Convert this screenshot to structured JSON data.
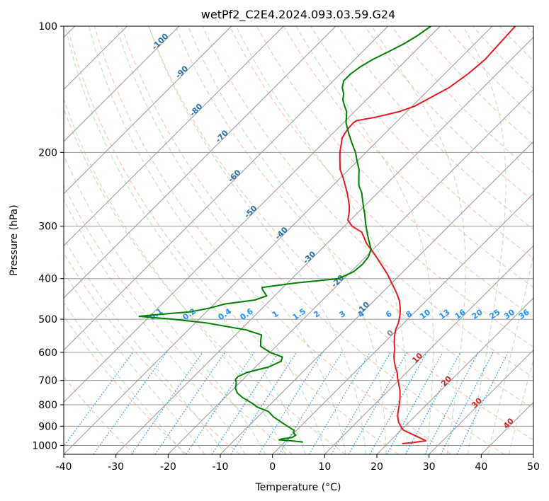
{
  "chart_data": {
    "type": "skew-t",
    "title": "wetPf2_C2E4.2024.093.03.59.G24",
    "xlabel": "Temperature (°C)",
    "ylabel": "Pressure (hPa)",
    "xlim": [
      -40,
      50
    ],
    "ylim": [
      1050,
      100
    ],
    "x_ticks": [
      -40,
      -30,
      -20,
      -10,
      0,
      10,
      20,
      30,
      40,
      50
    ],
    "y_ticks": [
      100,
      200,
      300,
      400,
      500,
      600,
      700,
      800,
      900,
      1000
    ],
    "grid": true,
    "colors": {
      "temperature": "#e41a1c",
      "dewpoint": "#008000",
      "isotherm": "#999999",
      "dry_adiabat": "#fc9272",
      "moist_adiabat": "#74c476",
      "mixing_ratio": "#1e90ff",
      "dry_adiabat_label": "#2c6fa8",
      "isotherm_label": "#d62728",
      "zero_label": "#888888"
    },
    "series": [
      {
        "name": "Temperature",
        "points": [
          [
            22.8,
            990
          ],
          [
            24.5,
            985
          ],
          [
            26.8,
            975
          ],
          [
            24.0,
            950
          ],
          [
            20.5,
            920
          ],
          [
            19.8,
            910
          ],
          [
            18.0,
            880
          ],
          [
            16.6,
            850
          ],
          [
            15.5,
            820
          ],
          [
            14.8,
            800
          ],
          [
            13.6,
            770
          ],
          [
            12.2,
            740
          ],
          [
            10.5,
            710
          ],
          [
            9.3,
            690
          ],
          [
            8.2,
            670
          ],
          [
            6.8,
            650
          ],
          [
            5.5,
            630
          ],
          [
            4.3,
            610
          ],
          [
            3.3,
            590
          ],
          [
            2.0,
            570
          ],
          [
            0.8,
            550
          ],
          [
            -0.3,
            530
          ],
          [
            -1.1,
            510
          ],
          [
            -2.2,
            490
          ],
          [
            -3.6,
            470
          ],
          [
            -5.3,
            450
          ],
          [
            -7.5,
            430
          ],
          [
            -10.0,
            410
          ],
          [
            -12.6,
            390
          ],
          [
            -15.6,
            370
          ],
          [
            -18.8,
            350
          ],
          [
            -22.4,
            330
          ],
          [
            -25.5,
            310
          ],
          [
            -28.5,
            300
          ],
          [
            -30.5,
            290
          ],
          [
            -31.5,
            280
          ],
          [
            -32.7,
            270
          ],
          [
            -34.2,
            260
          ],
          [
            -35.8,
            250
          ],
          [
            -37.6,
            240
          ],
          [
            -39.5,
            230
          ],
          [
            -41.6,
            220
          ],
          [
            -43.3,
            210
          ],
          [
            -45.0,
            200
          ],
          [
            -46.5,
            190
          ],
          [
            -47.3,
            185
          ],
          [
            -47.7,
            180
          ],
          [
            -48.0,
            175
          ],
          [
            -48.1,
            170
          ],
          [
            -47.9,
            168
          ],
          [
            -45.0,
            165
          ],
          [
            -41.5,
            160
          ],
          [
            -39.5,
            155
          ],
          [
            -38.5,
            150
          ],
          [
            -36.5,
            140
          ],
          [
            -35.5,
            130
          ],
          [
            -35.0,
            120
          ],
          [
            -35.3,
            110
          ],
          [
            -35.6,
            100
          ]
        ]
      },
      {
        "name": "Dewpoint",
        "points": [
          [
            3.5,
            982
          ],
          [
            1.0,
            975
          ],
          [
            -1.5,
            970
          ],
          [
            -1.2,
            965
          ],
          [
            0.5,
            958
          ],
          [
            0.8,
            945
          ],
          [
            0.0,
            935
          ],
          [
            -0.5,
            920
          ],
          [
            -2.0,
            905
          ],
          [
            -4.5,
            880
          ],
          [
            -7.0,
            855
          ],
          [
            -9.0,
            830
          ],
          [
            -12.0,
            810
          ],
          [
            -13.5,
            795
          ],
          [
            -16.5,
            770
          ],
          [
            -18.5,
            750
          ],
          [
            -19.8,
            730
          ],
          [
            -20.6,
            710
          ],
          [
            -21.5,
            695
          ],
          [
            -21.5,
            685
          ],
          [
            -20.6,
            670
          ],
          [
            -17.5,
            650
          ],
          [
            -16.2,
            630
          ],
          [
            -16.8,
            615
          ],
          [
            -20.0,
            600
          ],
          [
            -23.0,
            580
          ],
          [
            -24.2,
            560
          ],
          [
            -25.0,
            545
          ],
          [
            -29.0,
            530
          ],
          [
            -38.0,
            510
          ],
          [
            -45.0,
            500
          ],
          [
            -52.0,
            492
          ],
          [
            -47.0,
            485
          ],
          [
            -43.0,
            480
          ],
          [
            -40.0,
            470
          ],
          [
            -38.0,
            460
          ],
          [
            -33.0,
            450
          ],
          [
            -31.5,
            440
          ],
          [
            -33.5,
            425
          ],
          [
            -34.0,
            420
          ],
          [
            -28.5,
            410
          ],
          [
            -21.0,
            400
          ],
          [
            -19.5,
            385
          ],
          [
            -19.2,
            370
          ],
          [
            -19.5,
            355
          ],
          [
            -20.5,
            340
          ],
          [
            -22.5,
            325
          ],
          [
            -24.5,
            310
          ],
          [
            -26.5,
            295
          ],
          [
            -28.5,
            280
          ],
          [
            -30.0,
            270
          ],
          [
            -31.5,
            260
          ],
          [
            -33.0,
            250
          ],
          [
            -35.0,
            240
          ],
          [
            -36.5,
            230
          ],
          [
            -38.0,
            220
          ],
          [
            -40.0,
            210
          ],
          [
            -42.0,
            200
          ],
          [
            -44.5,
            190
          ],
          [
            -47.0,
            180
          ],
          [
            -49.5,
            170
          ],
          [
            -51.5,
            160
          ],
          [
            -53.0,
            155
          ],
          [
            -54.5,
            150
          ],
          [
            -55.5,
            145
          ],
          [
            -57.0,
            140
          ],
          [
            -58.0,
            135
          ],
          [
            -58.0,
            130
          ],
          [
            -57.5,
            125
          ],
          [
            -56.5,
            120
          ],
          [
            -55.0,
            115
          ],
          [
            -53.5,
            110
          ],
          [
            -52.5,
            105
          ],
          [
            -51.8,
            100
          ]
        ]
      }
    ],
    "dry_adiabat_labels": [
      "-100",
      "-90",
      "-80",
      "-70",
      "-60",
      "-50",
      "-40",
      "-30",
      "-20",
      "-10"
    ],
    "isotherm_labels": [
      "0",
      "10",
      "20",
      "30",
      "40"
    ],
    "mixing_ratio_labels": [
      "0.1",
      "0.2",
      "0.4",
      "0.6",
      "1",
      "1.5",
      "2",
      "3",
      "4",
      "6",
      "8",
      "10",
      "13",
      "16",
      "20",
      "25",
      "30",
      "36"
    ]
  }
}
